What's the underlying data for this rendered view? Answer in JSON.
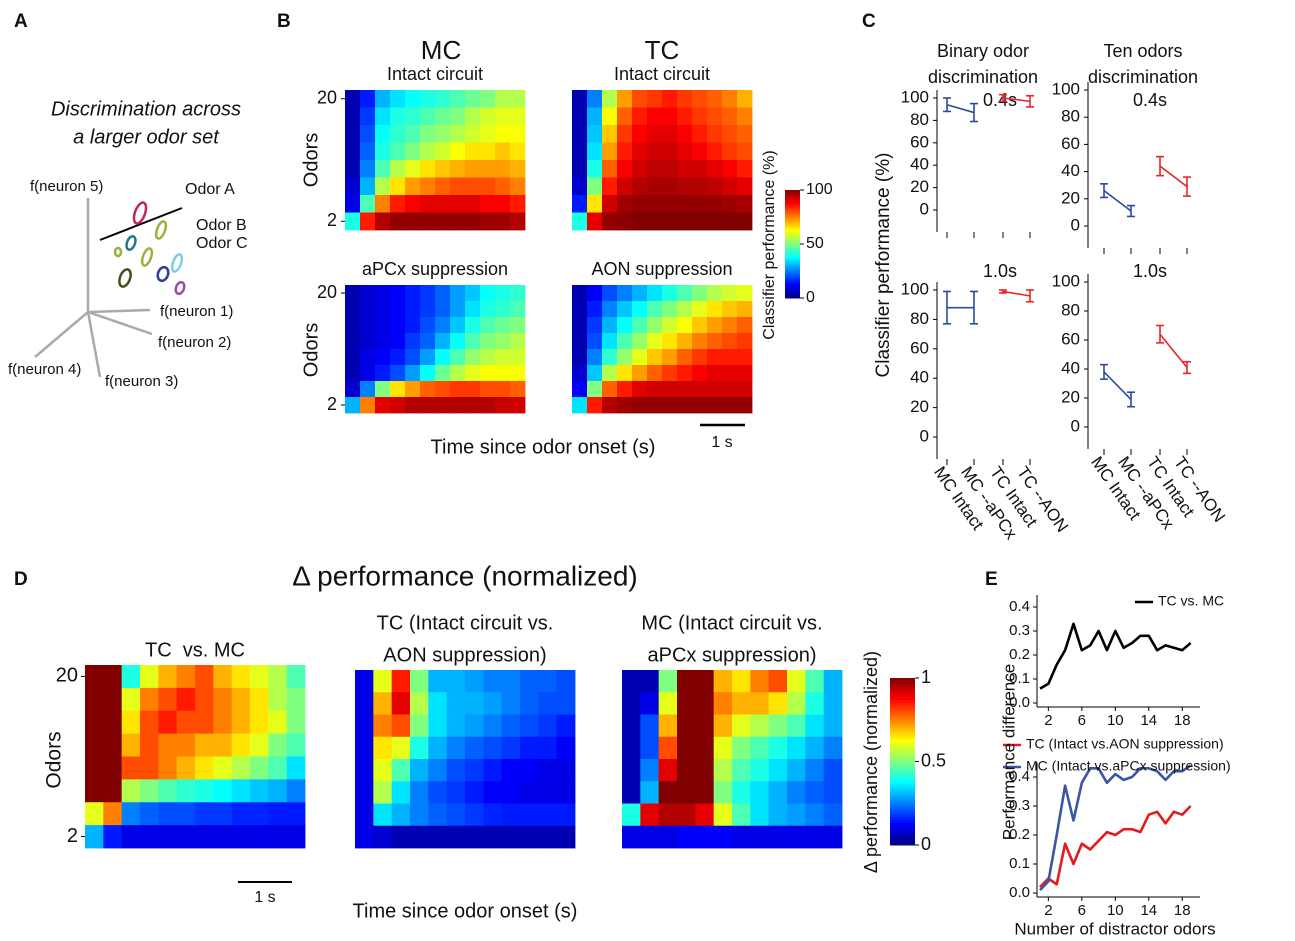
{
  "panel_labels": [
    "A",
    "B",
    "C",
    "D",
    "E"
  ],
  "panel_a": {
    "title": [
      "Discrimination across",
      "a larger odor set"
    ],
    "axis_labels": [
      "f(neuron 5)",
      "f(neuron 1)",
      "f(neuron 2)",
      "f(neuron 4)",
      "f(neuron 3)"
    ],
    "odors": [
      "Odor A",
      "Odor B",
      "Odor C"
    ],
    "odor_colors": [
      "#c8245a",
      "#7ccfe0",
      "#9ab33c"
    ]
  },
  "panel_b": {
    "columns": [
      {
        "title": "MC",
        "color": "#1a3ee0"
      },
      {
        "title": "TC",
        "color": "#ee1c1c"
      }
    ],
    "y_label": "Odors",
    "yticks": [
      2,
      20
    ],
    "ylim": [
      2,
      20
    ],
    "x_label": "Time since odor onset (s)",
    "scale_bar": "1 s",
    "colormap": "jet",
    "colorbar": {
      "label": "Classifier performance (%)",
      "lim": [
        0,
        100
      ],
      "ticks": [
        0,
        50,
        100
      ]
    },
    "heatmaps": [
      {
        "title": "Intact circuit",
        "values": [
          [
            5,
            15,
            30,
            35,
            38,
            40,
            42,
            45,
            48,
            50,
            55,
            55
          ],
          [
            5,
            18,
            35,
            40,
            42,
            45,
            48,
            50,
            55,
            58,
            60,
            60
          ],
          [
            5,
            20,
            38,
            42,
            45,
            50,
            52,
            55,
            58,
            60,
            62,
            62
          ],
          [
            5,
            22,
            40,
            45,
            50,
            55,
            58,
            62,
            65,
            65,
            68,
            65
          ],
          [
            5,
            25,
            45,
            55,
            60,
            65,
            68,
            70,
            72,
            72,
            72,
            70
          ],
          [
            8,
            30,
            55,
            65,
            72,
            75,
            78,
            80,
            80,
            80,
            78,
            75
          ],
          [
            10,
            45,
            75,
            85,
            88,
            90,
            90,
            90,
            90,
            88,
            88,
            85
          ],
          [
            40,
            85,
            95,
            98,
            98,
            98,
            98,
            98,
            98,
            97,
            97,
            95
          ]
        ]
      },
      {
        "title": "Intact circuit",
        "values": [
          [
            5,
            25,
            55,
            72,
            80,
            82,
            85,
            82,
            80,
            78,
            75,
            70
          ],
          [
            5,
            30,
            62,
            78,
            85,
            88,
            88,
            85,
            82,
            80,
            78,
            75
          ],
          [
            5,
            32,
            68,
            82,
            88,
            90,
            90,
            88,
            85,
            82,
            80,
            78
          ],
          [
            5,
            35,
            72,
            85,
            90,
            92,
            92,
            90,
            88,
            85,
            82,
            80
          ],
          [
            5,
            40,
            78,
            88,
            92,
            94,
            94,
            92,
            92,
            90,
            88,
            85
          ],
          [
            8,
            50,
            85,
            92,
            95,
            96,
            96,
            95,
            95,
            94,
            92,
            90
          ],
          [
            15,
            65,
            92,
            97,
            98,
            98,
            98,
            98,
            98,
            98,
            97,
            96
          ],
          [
            40,
            90,
            98,
            99,
            100,
            100,
            100,
            100,
            100,
            100,
            100,
            100
          ]
        ]
      },
      {
        "title": "aPCx suppression",
        "values": [
          [
            5,
            8,
            10,
            12,
            15,
            18,
            22,
            28,
            32,
            38,
            40,
            42
          ],
          [
            5,
            8,
            10,
            12,
            15,
            18,
            22,
            28,
            35,
            40,
            42,
            45
          ],
          [
            5,
            8,
            10,
            12,
            15,
            20,
            25,
            32,
            40,
            45,
            48,
            50
          ],
          [
            5,
            8,
            10,
            12,
            18,
            22,
            30,
            38,
            45,
            50,
            52,
            55
          ],
          [
            5,
            10,
            12,
            15,
            20,
            28,
            38,
            45,
            52,
            55,
            58,
            58
          ],
          [
            5,
            10,
            15,
            20,
            28,
            38,
            48,
            55,
            60,
            62,
            62,
            62
          ],
          [
            8,
            25,
            50,
            65,
            72,
            78,
            80,
            82,
            82,
            80,
            80,
            78
          ],
          [
            30,
            75,
            90,
            92,
            95,
            95,
            95,
            95,
            95,
            95,
            93,
            92
          ]
        ]
      },
      {
        "title": "AON suppression",
        "values": [
          [
            5,
            12,
            20,
            25,
            30,
            35,
            40,
            45,
            50,
            55,
            58,
            60
          ],
          [
            5,
            15,
            25,
            32,
            38,
            45,
            50,
            55,
            60,
            65,
            68,
            70
          ],
          [
            5,
            18,
            30,
            38,
            45,
            52,
            58,
            62,
            68,
            72,
            75,
            78
          ],
          [
            5,
            20,
            35,
            45,
            52,
            60,
            65,
            70,
            75,
            78,
            80,
            82
          ],
          [
            5,
            25,
            42,
            52,
            60,
            68,
            72,
            78,
            82,
            85,
            85,
            85
          ],
          [
            8,
            32,
            55,
            65,
            72,
            78,
            82,
            85,
            88,
            90,
            90,
            90
          ],
          [
            12,
            50,
            78,
            85,
            90,
            92,
            92,
            92,
            92,
            92,
            92,
            92
          ],
          [
            35,
            85,
            95,
            97,
            98,
            98,
            98,
            98,
            98,
            98,
            98,
            98
          ]
        ]
      }
    ]
  },
  "panel_c": {
    "y_label": "Classifier performance (%)",
    "categories": [
      "MC Intact",
      "MC --aPCx",
      "TC Intact",
      "TC --AON"
    ],
    "ylim": [
      0,
      100
    ],
    "yticks": [
      0,
      20,
      40,
      60,
      80,
      100
    ],
    "columns": [
      {
        "title": [
          "Binary odor",
          "discrimination"
        ]
      },
      {
        "title": [
          "Ten odors",
          "discrimination"
        ]
      }
    ],
    "charts": [
      {
        "subtitle": "0.4s",
        "series": [
          {
            "color": "#2b4aa0",
            "values": [
              94,
              87,
              null,
              null
            ],
            "errors": [
              6,
              8,
              null,
              null
            ]
          },
          {
            "color": "#e8262a",
            "values": [
              null,
              null,
              100,
              97
            ],
            "errors": [
              null,
              null,
              3,
              5
            ]
          }
        ]
      },
      {
        "subtitle": "0.4s",
        "series": [
          {
            "color": "#2b4aa0",
            "values": [
              26,
              11,
              null,
              null
            ],
            "errors": [
              5,
              4,
              null,
              null
            ]
          },
          {
            "color": "#e8262a",
            "values": [
              null,
              null,
              44,
              29
            ],
            "errors": [
              null,
              null,
              7,
              7
            ]
          }
        ]
      },
      {
        "subtitle": "1.0s",
        "series": [
          {
            "color": "#2b4aa0",
            "values": [
              88,
              88,
              null,
              null
            ],
            "errors": [
              11,
              11,
              null,
              null
            ]
          },
          {
            "color": "#e8262a",
            "values": [
              null,
              null,
              99,
              96
            ],
            "errors": [
              null,
              null,
              1,
              4
            ]
          }
        ]
      },
      {
        "subtitle": "1.0s",
        "series": [
          {
            "color": "#2b4aa0",
            "values": [
              38,
              19,
              null,
              null
            ],
            "errors": [
              5,
              5,
              null,
              null
            ]
          },
          {
            "color": "#e8262a",
            "values": [
              null,
              null,
              64,
              41
            ],
            "errors": [
              null,
              null,
              6,
              4
            ]
          }
        ]
      }
    ]
  },
  "panel_d": {
    "title": "Δ performance (normalized)",
    "y_label": "Odors",
    "yticks": [
      2,
      20
    ],
    "ylim": [
      2,
      20
    ],
    "x_label": "Time since odor onset (s)",
    "scale_bar": "1 s",
    "colormap": "jet",
    "colorbar": {
      "label": "Δ performance (normalized)",
      "lim": [
        0,
        1
      ],
      "ticks": [
        0,
        0.5,
        1
      ]
    },
    "heatmaps": [
      {
        "title": [
          "TC  vs. MC"
        ],
        "values": [
          [
            1,
            1,
            0.4,
            0.6,
            0.7,
            0.75,
            0.8,
            0.7,
            0.65,
            0.6,
            0.55,
            0.45
          ],
          [
            1,
            1,
            0.6,
            0.75,
            0.8,
            0.85,
            0.8,
            0.75,
            0.7,
            0.65,
            0.55,
            0.5
          ],
          [
            1,
            1,
            0.65,
            0.8,
            0.85,
            0.8,
            0.8,
            0.75,
            0.7,
            0.65,
            0.6,
            0.5
          ],
          [
            1,
            1,
            0.7,
            0.8,
            0.75,
            0.75,
            0.7,
            0.7,
            0.65,
            0.6,
            0.5,
            0.45
          ],
          [
            1,
            1,
            0.8,
            0.8,
            0.75,
            0.7,
            0.65,
            0.6,
            0.55,
            0.5,
            0.45,
            0.35
          ],
          [
            1,
            1,
            0.55,
            0.5,
            0.45,
            0.42,
            0.4,
            0.38,
            0.35,
            0.32,
            0.3,
            0.25
          ],
          [
            0.6,
            0.75,
            0.25,
            0.22,
            0.2,
            0.2,
            0.18,
            0.18,
            0.16,
            0.16,
            0.15,
            0.15
          ],
          [
            0.3,
            0.15,
            0.1,
            0.1,
            0.1,
            0.1,
            0.1,
            0.1,
            0.1,
            0.1,
            0.1,
            0.1
          ]
        ]
      },
      {
        "title": [
          "TC (Intact circuit vs.",
          "AON suppression)"
        ],
        "values": [
          [
            0.1,
            0.6,
            0.85,
            0.5,
            0.3,
            0.3,
            0.28,
            0.25,
            0.25,
            0.22,
            0.22,
            0.2
          ],
          [
            0.1,
            0.7,
            0.9,
            0.55,
            0.35,
            0.3,
            0.3,
            0.28,
            0.25,
            0.22,
            0.2,
            0.2
          ],
          [
            0.1,
            0.75,
            0.8,
            0.5,
            0.35,
            0.3,
            0.28,
            0.25,
            0.22,
            0.2,
            0.18,
            0.15
          ],
          [
            0.1,
            0.65,
            0.6,
            0.4,
            0.3,
            0.25,
            0.22,
            0.2,
            0.18,
            0.15,
            0.15,
            0.12
          ],
          [
            0.1,
            0.6,
            0.45,
            0.3,
            0.25,
            0.2,
            0.18,
            0.15,
            0.12,
            0.12,
            0.1,
            0.1
          ],
          [
            0.1,
            0.55,
            0.35,
            0.25,
            0.2,
            0.18,
            0.15,
            0.12,
            0.12,
            0.1,
            0.1,
            0.1
          ],
          [
            0.1,
            0.35,
            0.3,
            0.25,
            0.22,
            0.2,
            0.18,
            0.16,
            0.15,
            0.15,
            0.15,
            0.15
          ],
          [
            0.1,
            0.08,
            0.05,
            0.05,
            0.05,
            0.05,
            0.05,
            0.05,
            0.05,
            0.05,
            0.05,
            0.05
          ]
        ]
      },
      {
        "title": [
          "MC (Intact circuit vs.",
          "aPCx suppression)"
        ],
        "values": [
          [
            0.05,
            0.05,
            0.5,
            1,
            1,
            0.7,
            0.65,
            0.75,
            0.8,
            0.6,
            0.45,
            0.3
          ],
          [
            0.05,
            0.1,
            0.6,
            1,
            1,
            0.75,
            0.7,
            0.7,
            0.65,
            0.55,
            0.4,
            0.3
          ],
          [
            0.05,
            0.2,
            0.7,
            1,
            1,
            0.7,
            0.6,
            0.55,
            0.5,
            0.45,
            0.35,
            0.3
          ],
          [
            0.05,
            0.2,
            0.8,
            1,
            1,
            0.6,
            0.5,
            0.45,
            0.4,
            0.35,
            0.3,
            0.25
          ],
          [
            0.05,
            0.25,
            0.9,
            1,
            1,
            0.55,
            0.45,
            0.4,
            0.35,
            0.3,
            0.25,
            0.2
          ],
          [
            0.05,
            0.3,
            1,
            1,
            1,
            0.5,
            0.4,
            0.35,
            0.3,
            0.25,
            0.22,
            0.2
          ],
          [
            0.4,
            0.9,
            0.95,
            0.95,
            0.9,
            0.6,
            0.45,
            0.35,
            0.3,
            0.28,
            0.25,
            0.22
          ],
          [
            0.1,
            0.1,
            0.1,
            0.12,
            0.12,
            0.12,
            0.1,
            0.1,
            0.1,
            0.1,
            0.1,
            0.1
          ]
        ]
      }
    ]
  },
  "panel_e": {
    "type": "line",
    "y_label": "Performance difference",
    "x_label": "Number of distractor odors",
    "x": [
      1,
      2,
      3,
      4,
      5,
      6,
      7,
      8,
      9,
      10,
      11,
      12,
      13,
      14,
      15,
      16,
      17,
      18,
      19
    ],
    "xlim": [
      1,
      20
    ],
    "xticks": [
      2,
      6,
      10,
      14,
      18
    ],
    "ylim": [
      0,
      0.45
    ],
    "yticks": [
      {
        "value": 0,
        "label": "0.0"
      },
      0.1,
      0.2,
      0.3,
      0.4
    ],
    "charts": [
      {
        "series": [
          {
            "name": "TC vs. MC",
            "color": "#000000",
            "values": [
              0.06,
              0.08,
              0.16,
              0.22,
              0.33,
              0.22,
              0.24,
              0.3,
              0.22,
              0.3,
              0.23,
              0.25,
              0.28,
              0.28,
              0.22,
              0.24,
              0.23,
              0.22,
              0.25
            ]
          }
        ]
      },
      {
        "series": [
          {
            "name": "TC (Intact vs.AON suppression)",
            "color": "#e41a1c",
            "values": [
              0.02,
              0.05,
              0.03,
              0.17,
              0.1,
              0.17,
              0.15,
              0.18,
              0.21,
              0.2,
              0.22,
              0.22,
              0.21,
              0.27,
              0.28,
              0.24,
              0.28,
              0.27,
              0.3
            ]
          },
          {
            "name": "MC (Intact vs.aPCx suppression)",
            "color": "#3a55a4",
            "values": [
              0.01,
              0.04,
              0.2,
              0.37,
              0.25,
              0.38,
              0.43,
              0.43,
              0.38,
              0.41,
              0.39,
              0.4,
              0.43,
              0.43,
              0.42,
              0.39,
              0.42,
              0.42,
              0.44
            ]
          }
        ]
      }
    ]
  }
}
